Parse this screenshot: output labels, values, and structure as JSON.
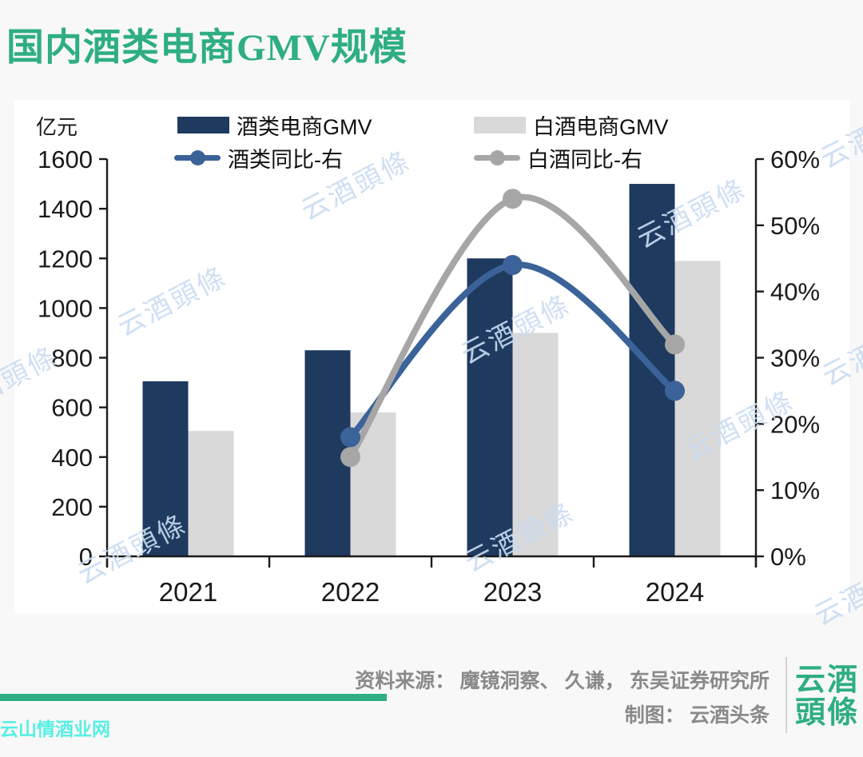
{
  "title": "国内酒类电商GMV规模",
  "chart_data": {
    "type": "bar+line combo",
    "categories": [
      "2021",
      "2022",
      "2023",
      "2024"
    ],
    "series": [
      {
        "name": "酒类电商GMV",
        "type": "bar",
        "axis": "left",
        "color": "#1F3A5F",
        "values": [
          705,
          830,
          1200,
          1500
        ]
      },
      {
        "name": "白酒电商GMV",
        "type": "bar",
        "axis": "left",
        "color": "#D9D9D9",
        "values": [
          505,
          580,
          900,
          1190
        ]
      },
      {
        "name": "酒类同比-右",
        "type": "line",
        "axis": "right",
        "color": "#3B6399",
        "values": [
          null,
          18,
          44,
          25
        ],
        "unit": "%"
      },
      {
        "name": "白酒同比-右",
        "type": "line",
        "axis": "right",
        "color": "#A6A6A6",
        "values": [
          null,
          15,
          54,
          32
        ],
        "unit": "%"
      }
    ],
    "left_axis": {
      "label": "亿元",
      "min": 0,
      "max": 1600,
      "step": 200,
      "tick_labels": [
        "0",
        "200",
        "400",
        "600",
        "800",
        "1000",
        "1200",
        "1400",
        "1600"
      ]
    },
    "right_axis": {
      "min": 0,
      "max": 60,
      "step": 10,
      "tick_labels": [
        "0%",
        "10%",
        "20%",
        "30%",
        "40%",
        "50%",
        "60%"
      ]
    },
    "legend_position": "top",
    "grid": false
  },
  "watermarks": {
    "chart": "云酒頭條",
    "corner": "云山情酒业网"
  },
  "footer": {
    "source": "资料来源： 魔镜洞察、 久谦， 东吴证券研究所",
    "credit": "制图： 云酒头条",
    "logo_line1": "云酒",
    "logo_line2": "頭條"
  },
  "colors": {
    "accent_green": "#2EAE82",
    "bar_dark_navy": "#1F3A5F",
    "bar_light_gray": "#D9D9D9",
    "line_blue": "#3B6399",
    "line_gray": "#A6A6A6",
    "watermark_blue": "#C9DCF2",
    "corner_watermark_cyan": "#57EFE4",
    "source_text_gray": "#8A8A8A",
    "axis_black": "#1A1A1A",
    "panel_bg": "#FFFFFF",
    "page_bg": "#F8F8F8"
  }
}
